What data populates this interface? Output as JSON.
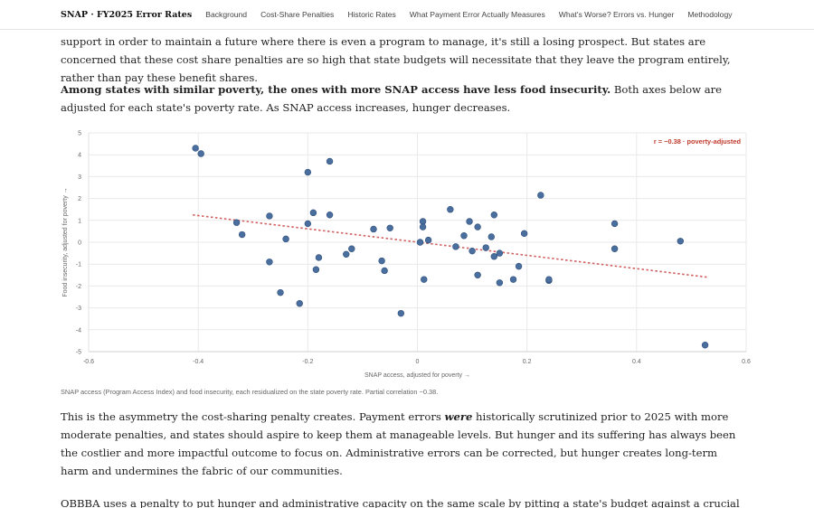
{
  "nav": {
    "brand": "SNAP · FY2025 Error Rates",
    "links": [
      "Background",
      "Cost-Share Penalties",
      "Historic Rates",
      "What Payment Error Actually Measures",
      "What's Worse? Errors vs. Hunger",
      "Methodology"
    ]
  },
  "text": {
    "p_top": "support in order to maintain a future where there is even a program to manage, it's still a losing prospect. But states are concerned that these cost share penalties are so high that state budgets will necessitate that they leave the program entirely, rather than pay these benefit shares.",
    "p_lead_bold": "Among states with similar poverty, the ones with more SNAP access have less food insecurity.",
    "p_lead_rest": " Both axes below are adjusted for each state's poverty rate. As SNAP access increases, hunger decreases.",
    "caption": "SNAP access (Program Access Index) and food insecurity, each residualized on the state poverty rate. Partial correlation −0.38.",
    "p_after_1": "This is the asymmetry the cost-sharing penalty creates. Payment errors ",
    "p_after_em": "were",
    "p_after_2": " historically scrutinized prior to 2025 with more moderate penalties, and states should aspire to keep them at manageable levels. But hunger and its suffering has always been the costlier and more impactful outcome to focus on. Administrative errors can be corrected, but hunger creates long-term harm and undermines the fabric of our communities.",
    "p_last": "OBBBA uses a penalty to put hunger and administrative capacity on the same scale by pitting a state's budget against a crucial food support"
  },
  "chart_data": {
    "type": "scatter",
    "xlabel": "SNAP access, adjusted for poverty →",
    "ylabel": "Food insecurity, adjusted for poverty →",
    "xlim": [
      -0.6,
      0.6
    ],
    "ylim": [
      -5,
      5
    ],
    "xticks": [
      "-0.6",
      "-0.4",
      "-0.2",
      "0",
      "0.2",
      "0.4",
      "0.6"
    ],
    "yticks": [
      "5",
      "4",
      "3",
      "2",
      "1",
      "0",
      "-1",
      "-2",
      "-3",
      "-4",
      "-5"
    ],
    "grid": true,
    "annotation": "r = −0.38 · poverty-adjusted",
    "trend": {
      "x": [
        -0.41,
        0.53
      ],
      "y": [
        1.25,
        -1.6
      ]
    },
    "colors": {
      "point": "#4a6f9f",
      "trend": "#d06060",
      "annotation": "#c0392b"
    },
    "points": [
      {
        "x": -0.405,
        "y": 4.3
      },
      {
        "x": -0.395,
        "y": 4.05
      },
      {
        "x": -0.33,
        "y": 0.9
      },
      {
        "x": -0.32,
        "y": 0.35
      },
      {
        "x": -0.27,
        "y": 1.2
      },
      {
        "x": -0.27,
        "y": -0.9
      },
      {
        "x": -0.25,
        "y": -2.3
      },
      {
        "x": -0.24,
        "y": 0.15
      },
      {
        "x": -0.215,
        "y": -2.8
      },
      {
        "x": -0.2,
        "y": 3.2
      },
      {
        "x": -0.2,
        "y": 0.85
      },
      {
        "x": -0.19,
        "y": 1.35
      },
      {
        "x": -0.185,
        "y": -1.25
      },
      {
        "x": -0.18,
        "y": -0.7
      },
      {
        "x": -0.16,
        "y": 3.7
      },
      {
        "x": -0.16,
        "y": 1.25
      },
      {
        "x": -0.13,
        "y": -0.55
      },
      {
        "x": -0.12,
        "y": -0.3
      },
      {
        "x": -0.08,
        "y": 0.6
      },
      {
        "x": -0.065,
        "y": -0.85
      },
      {
        "x": -0.06,
        "y": -1.3
      },
      {
        "x": -0.05,
        "y": 0.65
      },
      {
        "x": -0.03,
        "y": -3.25
      },
      {
        "x": 0.005,
        "y": 0.0
      },
      {
        "x": 0.01,
        "y": 0.95
      },
      {
        "x": 0.01,
        "y": 0.7
      },
      {
        "x": 0.012,
        "y": -1.7
      },
      {
        "x": 0.02,
        "y": 0.1
      },
      {
        "x": 0.06,
        "y": 1.5
      },
      {
        "x": 0.07,
        "y": -0.2
      },
      {
        "x": 0.085,
        "y": 0.3
      },
      {
        "x": 0.095,
        "y": 0.95
      },
      {
        "x": 0.1,
        "y": -0.4
      },
      {
        "x": 0.11,
        "y": 0.7
      },
      {
        "x": 0.11,
        "y": -1.5
      },
      {
        "x": 0.125,
        "y": -0.25
      },
      {
        "x": 0.135,
        "y": 0.25
      },
      {
        "x": 0.14,
        "y": 1.25
      },
      {
        "x": 0.14,
        "y": -0.65
      },
      {
        "x": 0.15,
        "y": -0.5
      },
      {
        "x": 0.15,
        "y": -1.85
      },
      {
        "x": 0.175,
        "y": -1.7
      },
      {
        "x": 0.185,
        "y": -1.1
      },
      {
        "x": 0.195,
        "y": 0.4
      },
      {
        "x": 0.225,
        "y": 2.15
      },
      {
        "x": 0.24,
        "y": -1.75
      },
      {
        "x": 0.24,
        "y": -1.7
      },
      {
        "x": 0.36,
        "y": 0.85
      },
      {
        "x": 0.36,
        "y": -0.3
      },
      {
        "x": 0.48,
        "y": 0.05
      },
      {
        "x": 0.525,
        "y": -4.7
      }
    ]
  }
}
